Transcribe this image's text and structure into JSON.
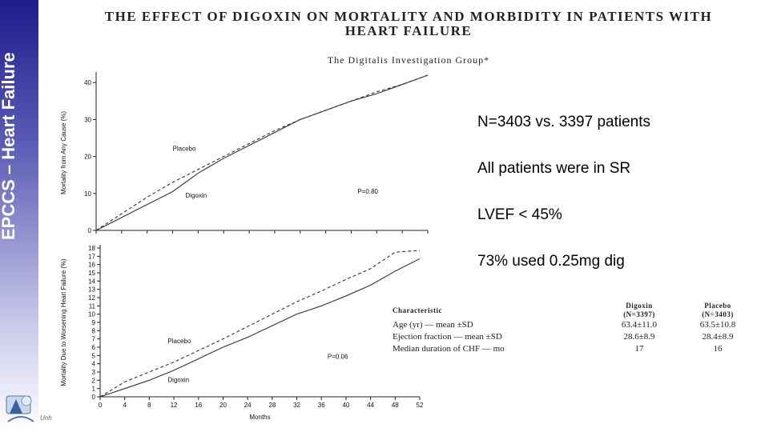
{
  "sidebar": {
    "title": "EPCCS – Heart Failure",
    "logo_caption": "Unh"
  },
  "paper": {
    "title_line1": "THE EFFECT OF DIGOXIN ON MORTALITY AND MORBIDITY IN PATIENTS WITH",
    "title_line2": "HEART FAILURE",
    "subtitle": "The Digitalis Investigation Group*"
  },
  "facts": [
    "N=3403 vs. 3397 patients",
    "All patients were in SR",
    "LVEF  < 45%",
    "73% used 0.25mg dig"
  ],
  "chart_data": [
    {
      "type": "line",
      "ylabel": "Mortality from Any Cause (%)",
      "xlabel": "",
      "ylim": [
        0,
        42
      ],
      "yticks": [
        0,
        10,
        20,
        30,
        40
      ],
      "xticks": [
        0,
        4,
        8,
        12,
        16,
        20,
        24,
        28,
        32,
        36,
        40,
        44,
        48,
        52
      ],
      "x": [
        0,
        4,
        8,
        12,
        16,
        20,
        24,
        28,
        32,
        36,
        40,
        44,
        48,
        52
      ],
      "series": [
        {
          "name": "Placebo",
          "style": "dashed",
          "values": [
            0,
            4.5,
            9,
            13,
            16.5,
            20,
            23.5,
            27,
            30,
            32.5,
            35,
            37.5,
            39.5,
            42
          ]
        },
        {
          "name": "Digoxin",
          "style": "solid",
          "values": [
            0,
            3.5,
            7,
            10.5,
            15.5,
            19.5,
            23,
            26.5,
            30,
            32.5,
            35,
            37,
            39.5,
            42
          ]
        }
      ],
      "annotation": "P=0.80"
    },
    {
      "type": "line",
      "xlabel": "Months",
      "ylabel": "Mortality Due to Worsening Heart Failure (%)",
      "ylim": [
        0,
        18
      ],
      "yticks": [
        0,
        1,
        2,
        3,
        4,
        5,
        6,
        7,
        8,
        9,
        10,
        11,
        12,
        13,
        14,
        15,
        16,
        17,
        18
      ],
      "xticks": [
        0,
        4,
        8,
        12,
        16,
        20,
        24,
        28,
        32,
        36,
        40,
        44,
        48,
        52
      ],
      "x": [
        0,
        4,
        8,
        12,
        16,
        20,
        24,
        28,
        32,
        36,
        40,
        44,
        48,
        52
      ],
      "series": [
        {
          "name": "Placebo",
          "style": "dashed",
          "values": [
            0,
            1.8,
            3.0,
            4.2,
            5.6,
            7.0,
            8.5,
            10.0,
            11.5,
            12.8,
            14.2,
            15.5,
            17.5,
            17.7
          ]
        },
        {
          "name": "Digoxin",
          "style": "solid",
          "values": [
            0,
            1.0,
            2.0,
            3.2,
            4.6,
            6.0,
            7.2,
            8.6,
            10.0,
            11.0,
            12.2,
            13.5,
            15.2,
            16.7
          ]
        }
      ],
      "annotation": "P=0.06"
    }
  ],
  "table": {
    "headers": [
      "Characteristic",
      "Digoxin\n(N=3397)",
      "Placebo\n(N=3403)"
    ],
    "rows": [
      [
        "Age (yr) — mean ±SD",
        "63.4±11.0",
        "63.5±10.8"
      ],
      [
        "Ejection fraction — mean ±SD",
        "28.6±8.9",
        "28.4±8.9"
      ],
      [
        "Median duration of CHF — mo",
        "17",
        "16"
      ]
    ]
  }
}
